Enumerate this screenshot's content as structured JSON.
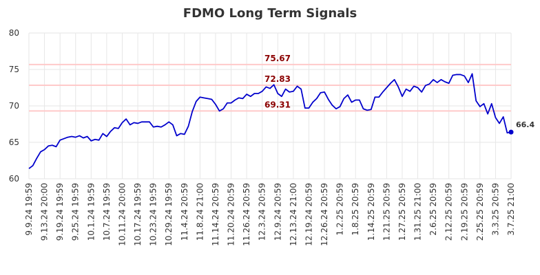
{
  "chart_data": {
    "type": "line",
    "title": "FDMO Long Term Signals",
    "xlabel": "",
    "ylabel": "",
    "ylim": [
      60,
      80
    ],
    "yticks": [
      "60",
      "65",
      "70",
      "75",
      "80"
    ],
    "grid": true,
    "legend": "none",
    "x_tick_labels": [
      "9.9.24 19:59",
      "9.13.24 20:00",
      "9.19.24 19:59",
      "9.25.24 19:59",
      "10.1.24 19:59",
      "10.7.24 19:59",
      "10.11.24 20:00",
      "10.17.24 19:59",
      "10.23.24 19:59",
      "10.29.24 19:59",
      "11.4.24 20:59",
      "11.8.24 21:00",
      "11.14.24 20:59",
      "11.20.24 20:59",
      "11.26.24 20:59",
      "12.3.24 20:59",
      "12.9.24 20:59",
      "12.13.24 21:00",
      "12.19.24 20:59",
      "12.26.24 20:59",
      "1.2.25 20:59",
      "1.8.25 20:59",
      "1.14.25 20:59",
      "1.21.25 20:59",
      "1.27.25 20:59",
      "1.31.25 21:00",
      "2.6.25 20:59",
      "2.12.25 20:59",
      "2.19.25 20:59",
      "2.25.25 20:59",
      "3.3.25 20:59",
      "3.7.25 21:00"
    ],
    "horizontal_lines": [
      {
        "value": 75.67,
        "label": "75.67"
      },
      {
        "value": 72.83,
        "label": "72.83"
      },
      {
        "value": 69.31,
        "label": "69.31"
      }
    ],
    "series": [
      {
        "color": "#0000cc",
        "values": [
          61.4,
          61.8,
          62.8,
          63.7,
          64.0,
          64.5,
          64.6,
          64.4,
          65.3,
          65.5,
          65.7,
          65.8,
          65.7,
          65.9,
          65.6,
          65.8,
          65.2,
          65.4,
          65.3,
          66.2,
          65.8,
          66.5,
          67.0,
          66.9,
          67.7,
          68.2,
          67.4,
          67.7,
          67.6,
          67.8,
          67.8,
          67.8,
          67.1,
          67.2,
          67.1,
          67.4,
          67.8,
          67.4,
          65.9,
          66.2,
          66.1,
          67.2,
          69.2,
          70.6,
          71.2,
          71.1,
          71.0,
          70.9,
          70.2,
          69.3,
          69.6,
          70.4,
          70.4,
          70.8,
          71.1,
          71.0,
          71.6,
          71.3,
          71.7,
          71.7,
          72.0,
          72.6,
          72.4,
          72.9,
          71.7,
          71.3,
          72.3,
          71.9,
          72.0,
          72.7,
          72.3,
          69.7,
          69.7,
          70.5,
          71.0,
          71.8,
          71.9,
          70.9,
          70.1,
          69.6,
          69.9,
          71.0,
          71.5,
          70.5,
          70.8,
          70.8,
          69.6,
          69.4,
          69.5,
          71.2,
          71.2,
          71.9,
          72.5,
          73.1,
          73.6,
          72.6,
          71.3,
          72.3,
          72.0,
          72.7,
          72.5,
          71.9,
          72.8,
          73.0,
          73.6,
          73.2,
          73.6,
          73.3,
          73.1,
          74.2,
          74.3,
          74.3,
          74.1,
          73.2,
          74.4,
          70.7,
          69.9,
          70.3,
          68.9,
          70.3,
          68.4,
          67.6,
          68.5,
          66.3,
          66.4
        ]
      }
    ],
    "last_value_label": "66.4"
  }
}
